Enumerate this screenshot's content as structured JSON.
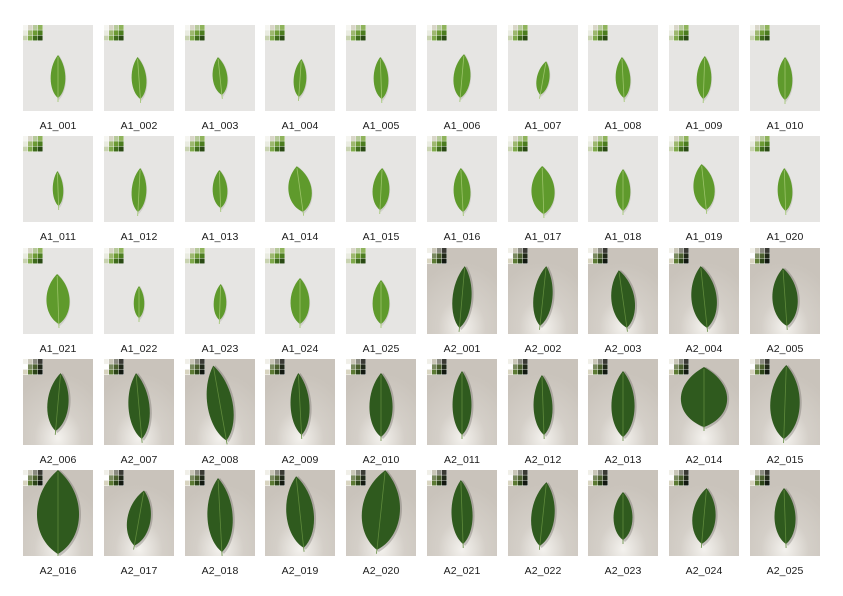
{
  "colors": {
    "a1_background": "#e6e5e3",
    "a2_background": "#c9c3bb",
    "a1_leaf": "#5f9a2c",
    "a2_leaf": "#2f5a1e"
  },
  "rows": [
    [
      {
        "label": "A1_001",
        "set": "A1",
        "icon": "leaf-icon"
      },
      {
        "label": "A1_002",
        "set": "A1",
        "icon": "leaf-icon"
      },
      {
        "label": "A1_003",
        "set": "A1",
        "icon": "leaf-icon"
      },
      {
        "label": "A1_004",
        "set": "A1",
        "icon": "leaf-icon"
      },
      {
        "label": "A1_005",
        "set": "A1",
        "icon": "leaf-icon"
      },
      {
        "label": "A1_006",
        "set": "A1",
        "icon": "leaf-icon"
      },
      {
        "label": "A1_007",
        "set": "A1",
        "icon": "leaf-icon"
      },
      {
        "label": "A1_008",
        "set": "A1",
        "icon": "leaf-icon"
      },
      {
        "label": "A1_009",
        "set": "A1",
        "icon": "leaf-icon"
      },
      {
        "label": "A1_010",
        "set": "A1",
        "icon": "leaf-icon"
      }
    ],
    [
      {
        "label": "A1_011",
        "set": "A1",
        "icon": "leaf-icon"
      },
      {
        "label": "A1_012",
        "set": "A1",
        "icon": "leaf-icon"
      },
      {
        "label": "A1_013",
        "set": "A1",
        "icon": "leaf-icon"
      },
      {
        "label": "A1_014",
        "set": "A1",
        "icon": "leaf-icon"
      },
      {
        "label": "A1_015",
        "set": "A1",
        "icon": "leaf-icon"
      },
      {
        "label": "A1_016",
        "set": "A1",
        "icon": "leaf-icon"
      },
      {
        "label": "A1_017",
        "set": "A1",
        "icon": "leaf-icon"
      },
      {
        "label": "A1_018",
        "set": "A1",
        "icon": "leaf-icon"
      },
      {
        "label": "A1_019",
        "set": "A1",
        "icon": "leaf-icon"
      },
      {
        "label": "A1_020",
        "set": "A1",
        "icon": "leaf-icon"
      }
    ],
    [
      {
        "label": "A1_021",
        "set": "A1",
        "icon": "leaf-icon"
      },
      {
        "label": "A1_022",
        "set": "A1",
        "icon": "leaf-icon"
      },
      {
        "label": "A1_023",
        "set": "A1",
        "icon": "leaf-icon"
      },
      {
        "label": "A1_024",
        "set": "A1",
        "icon": "leaf-icon"
      },
      {
        "label": "A1_025",
        "set": "A1",
        "icon": "leaf-icon"
      },
      {
        "label": "A2_001",
        "set": "A2",
        "icon": "leaf-icon"
      },
      {
        "label": "A2_002",
        "set": "A2",
        "icon": "leaf-icon"
      },
      {
        "label": "A2_003",
        "set": "A2",
        "icon": "leaf-icon"
      },
      {
        "label": "A2_004",
        "set": "A2",
        "icon": "leaf-icon"
      },
      {
        "label": "A2_005",
        "set": "A2",
        "icon": "leaf-icon"
      }
    ],
    [
      {
        "label": "A2_006",
        "set": "A2",
        "icon": "leaf-icon"
      },
      {
        "label": "A2_007",
        "set": "A2",
        "icon": "leaf-icon"
      },
      {
        "label": "A2_008",
        "set": "A2",
        "icon": "leaf-icon"
      },
      {
        "label": "A2_009",
        "set": "A2",
        "icon": "leaf-icon"
      },
      {
        "label": "A2_010",
        "set": "A2",
        "icon": "leaf-icon"
      },
      {
        "label": "A2_011",
        "set": "A2",
        "icon": "leaf-icon"
      },
      {
        "label": "A2_012",
        "set": "A2",
        "icon": "leaf-icon"
      },
      {
        "label": "A2_013",
        "set": "A2",
        "icon": "leaf-icon"
      },
      {
        "label": "A2_014",
        "set": "A2",
        "icon": "leaf-icon"
      },
      {
        "label": "A2_015",
        "set": "A2",
        "icon": "leaf-icon"
      }
    ],
    [
      {
        "label": "A2_016",
        "set": "A2",
        "icon": "leaf-icon"
      },
      {
        "label": "A2_017",
        "set": "A2",
        "icon": "leaf-icon"
      },
      {
        "label": "A2_018",
        "set": "A2",
        "icon": "leaf-icon"
      },
      {
        "label": "A2_019",
        "set": "A2",
        "icon": "leaf-icon"
      },
      {
        "label": "A2_020",
        "set": "A2",
        "icon": "leaf-icon"
      },
      {
        "label": "A2_021",
        "set": "A2",
        "icon": "leaf-icon"
      },
      {
        "label": "A2_022",
        "set": "A2",
        "icon": "leaf-icon"
      },
      {
        "label": "A2_023",
        "set": "A2",
        "icon": "leaf-icon"
      },
      {
        "label": "A2_024",
        "set": "A2",
        "icon": "leaf-icon"
      },
      {
        "label": "A2_025",
        "set": "A2",
        "icon": "leaf-icon"
      }
    ]
  ]
}
